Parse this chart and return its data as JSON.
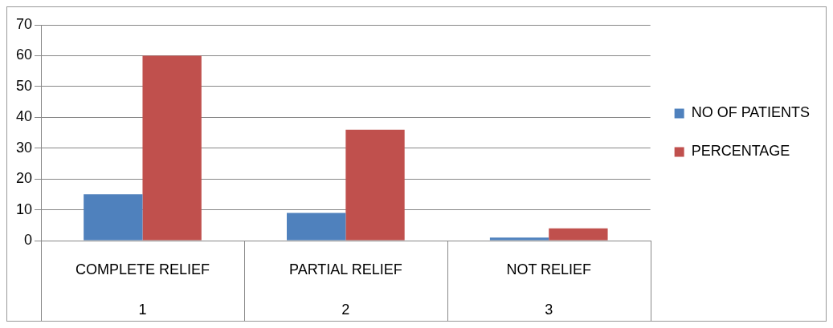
{
  "chart_data": {
    "type": "bar",
    "categories": [
      "COMPLETE RELIEF\n1",
      "PARTIAL RELIEF\n2",
      "NOT RELIEF\n3"
    ],
    "series": [
      {
        "name": "NO OF PATIENTS",
        "color": "#4f81bd",
        "values": [
          15,
          9,
          1
        ]
      },
      {
        "name": "PERCENTAGE",
        "color": "#c0504d",
        "values": [
          60,
          36,
          4
        ]
      }
    ],
    "ylim": [
      0,
      70
    ],
    "yticks": [
      0,
      10,
      20,
      30,
      40,
      50,
      60,
      70
    ],
    "grid": "y",
    "legend": "right"
  }
}
